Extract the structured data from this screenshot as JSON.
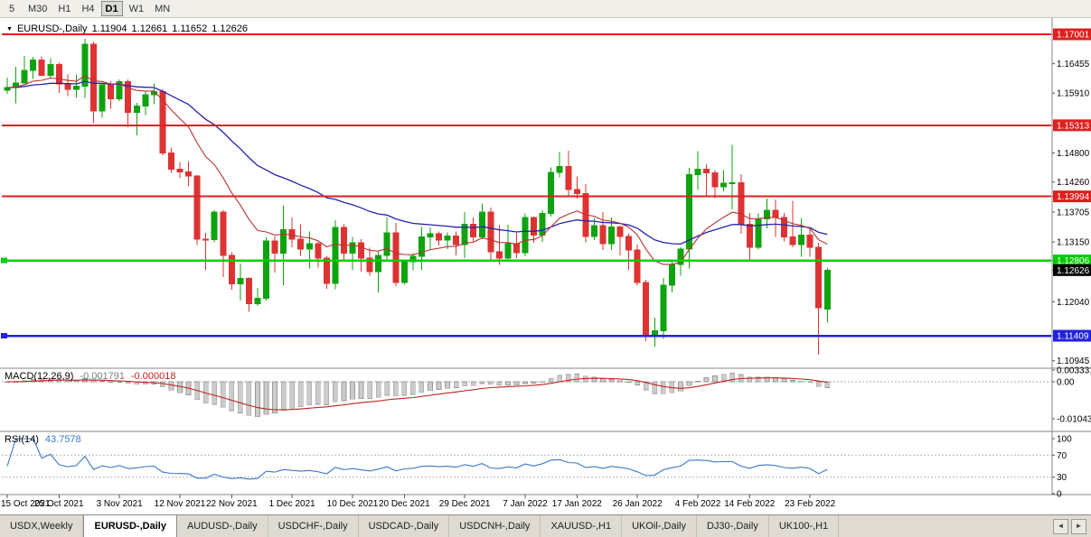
{
  "icons": {
    "dropdown": "▼",
    "scroll_left": "◄",
    "scroll_right": "►"
  },
  "toolbar": {
    "timeframes": [
      {
        "label": "5",
        "active": false
      },
      {
        "label": "M30",
        "active": false
      },
      {
        "label": "H1",
        "active": false
      },
      {
        "label": "H4",
        "active": false
      },
      {
        "label": "D1",
        "active": true
      },
      {
        "label": "W1",
        "active": false
      },
      {
        "label": "MN",
        "active": false
      }
    ]
  },
  "chart_data": {
    "type": "candlestick",
    "title": {
      "symbol": "EURUSD-,Daily",
      "open": "1.11904",
      "high": "1.12661",
      "low": "1.11652",
      "close": "1.12626"
    },
    "colors": {
      "up": "#0FA30F",
      "down": "#DD3333"
    },
    "ma_fast": {
      "period": 13,
      "color": "#B83232"
    },
    "ma_slow": {
      "period": 34,
      "color": "#2424AC"
    },
    "hlines": [
      {
        "price": 1.17001,
        "color": "#DE2020",
        "width": 2,
        "marker": false
      },
      {
        "price": 1.15313,
        "color": "#DE2020",
        "width": 2,
        "marker": false
      },
      {
        "price": 1.13994,
        "color": "#DE2020",
        "width": 2,
        "marker": false
      },
      {
        "price": 1.12806,
        "color": "#00CC00",
        "width": 2.5,
        "marker": true
      },
      {
        "price": 1.11409,
        "color": "#2222DD",
        "width": 2.5,
        "marker": true
      }
    ],
    "y_axis_labels": [
      {
        "text": "1.17001",
        "price": 1.17001,
        "badge": "#DE2020"
      },
      {
        "text": "1.16455",
        "price": 1.16455,
        "badge": null
      },
      {
        "text": "1.15910",
        "price": 1.1591,
        "badge": null
      },
      {
        "text": "1.15313",
        "price": 1.15313,
        "badge": "#DE2020"
      },
      {
        "text": "1.14800",
        "price": 1.148,
        "badge": null
      },
      {
        "text": "1.14260",
        "price": 1.1426,
        "badge": null
      },
      {
        "text": "1.13994",
        "price": 1.13994,
        "badge": "#DE2020"
      },
      {
        "text": "1.13705",
        "price": 1.13705,
        "badge": null
      },
      {
        "text": "1.13150",
        "price": 1.1315,
        "badge": null
      },
      {
        "text": "1.12806",
        "price": 1.12806,
        "badge": "#00CC00"
      },
      {
        "text": "1.12626",
        "price": 1.12626,
        "badge": "#000000"
      },
      {
        "text": "1.12040",
        "price": 1.1204,
        "badge": null
      },
      {
        "text": "1.11409",
        "price": 1.11409,
        "badge": "#2222DD"
      },
      {
        "text": "1.10945",
        "price": 1.10945,
        "badge": null
      }
    ],
    "x_labels": [
      {
        "index": 0,
        "text": "15 Oct 2021"
      },
      {
        "index": 6,
        "text": "25 Oct 2021"
      },
      {
        "index": 13,
        "text": "3 Nov 2021"
      },
      {
        "index": 20,
        "text": "12 Nov 2021"
      },
      {
        "index": 26,
        "text": "22 Nov 2021"
      },
      {
        "index": 33,
        "text": "1 Dec 2021"
      },
      {
        "index": 40,
        "text": "10 Dec 2021"
      },
      {
        "index": 46,
        "text": "20 Dec 2021"
      },
      {
        "index": 53,
        "text": "29 Dec 2021"
      },
      {
        "index": 60,
        "text": "7 Jan 2022"
      },
      {
        "index": 66,
        "text": "17 Jan 2022"
      },
      {
        "index": 73,
        "text": "26 Jan 2022"
      },
      {
        "index": 80,
        "text": "4 Feb 2022"
      },
      {
        "index": 86,
        "text": "14 Feb 2022"
      },
      {
        "index": 93,
        "text": "23 Feb 2022"
      }
    ],
    "candles": [
      [
        1.1596,
        1.162,
        1.159,
        1.1601
      ],
      [
        1.1601,
        1.164,
        1.1572,
        1.161
      ],
      [
        1.161,
        1.166,
        1.1609,
        1.1633
      ],
      [
        1.1633,
        1.1658,
        1.1617,
        1.1652
      ],
      [
        1.1652,
        1.1659,
        1.1622,
        1.1624
      ],
      [
        1.1624,
        1.1656,
        1.162,
        1.1644
      ],
      [
        1.1644,
        1.1647,
        1.1591,
        1.1608
      ],
      [
        1.1608,
        1.1626,
        1.1585,
        1.1598
      ],
      [
        1.1598,
        1.1626,
        1.1583,
        1.1604
      ],
      [
        1.1604,
        1.1692,
        1.1582,
        1.1682
      ],
      [
        1.1682,
        1.1686,
        1.1535,
        1.1558
      ],
      [
        1.1558,
        1.1609,
        1.1545,
        1.1606
      ],
      [
        1.1606,
        1.1613,
        1.1562,
        1.158
      ],
      [
        1.158,
        1.1616,
        1.1576,
        1.1612
      ],
      [
        1.1612,
        1.1616,
        1.1528,
        1.1555
      ],
      [
        1.1555,
        1.1573,
        1.1513,
        1.1567
      ],
      [
        1.1567,
        1.1595,
        1.155,
        1.1588
      ],
      [
        1.1588,
        1.1609,
        1.157,
        1.1594
      ],
      [
        1.1594,
        1.1598,
        1.1475,
        1.148
      ],
      [
        1.148,
        1.149,
        1.1443,
        1.145
      ],
      [
        1.145,
        1.1463,
        1.1433,
        1.1445
      ],
      [
        1.1445,
        1.1465,
        1.1418,
        1.1437
      ],
      [
        1.1437,
        1.1439,
        1.1309,
        1.132
      ],
      [
        1.132,
        1.1332,
        1.1263,
        1.1319
      ],
      [
        1.1319,
        1.1374,
        1.1314,
        1.137
      ],
      [
        1.137,
        1.1374,
        1.125,
        1.129
      ],
      [
        1.129,
        1.1296,
        1.1226,
        1.1237
      ],
      [
        1.1237,
        1.1275,
        1.1206,
        1.1247
      ],
      [
        1.1247,
        1.125,
        1.1185,
        1.12
      ],
      [
        1.12,
        1.123,
        1.1196,
        1.121
      ],
      [
        1.121,
        1.1323,
        1.1206,
        1.1317
      ],
      [
        1.1317,
        1.1325,
        1.1258,
        1.1294
      ],
      [
        1.1294,
        1.1383,
        1.1235,
        1.1338
      ],
      [
        1.1338,
        1.136,
        1.1305,
        1.132
      ],
      [
        1.132,
        1.1348,
        1.1289,
        1.1302
      ],
      [
        1.1302,
        1.1334,
        1.1266,
        1.1312
      ],
      [
        1.1312,
        1.1315,
        1.1267,
        1.1285
      ],
      [
        1.1285,
        1.1289,
        1.1228,
        1.1238
      ],
      [
        1.1238,
        1.1355,
        1.1227,
        1.1342
      ],
      [
        1.1342,
        1.1348,
        1.1279,
        1.1294
      ],
      [
        1.1294,
        1.1324,
        1.1263,
        1.1313
      ],
      [
        1.1313,
        1.132,
        1.126,
        1.1285
      ],
      [
        1.1285,
        1.1304,
        1.1252,
        1.126
      ],
      [
        1.126,
        1.1298,
        1.1221,
        1.129
      ],
      [
        1.129,
        1.136,
        1.128,
        1.1332
      ],
      [
        1.1332,
        1.135,
        1.1233,
        1.124
      ],
      [
        1.124,
        1.128,
        1.1236,
        1.1278
      ],
      [
        1.1278,
        1.1294,
        1.1262,
        1.1288
      ],
      [
        1.1288,
        1.1343,
        1.1263,
        1.1324
      ],
      [
        1.1324,
        1.1342,
        1.1301,
        1.133
      ],
      [
        1.133,
        1.1334,
        1.1308,
        1.1318
      ],
      [
        1.1318,
        1.1333,
        1.1302,
        1.1326
      ],
      [
        1.1326,
        1.1334,
        1.129,
        1.131
      ],
      [
        1.131,
        1.137,
        1.1285,
        1.1348
      ],
      [
        1.1348,
        1.136,
        1.1316,
        1.1324
      ],
      [
        1.1324,
        1.1386,
        1.132,
        1.137
      ],
      [
        1.137,
        1.1379,
        1.1279,
        1.1297
      ],
      [
        1.1297,
        1.1346,
        1.1272,
        1.1285
      ],
      [
        1.1285,
        1.1347,
        1.128,
        1.1312
      ],
      [
        1.1312,
        1.1332,
        1.1285,
        1.1295
      ],
      [
        1.1295,
        1.1368,
        1.1288,
        1.136
      ],
      [
        1.136,
        1.1362,
        1.1313,
        1.1328
      ],
      [
        1.1328,
        1.1374,
        1.1315,
        1.1368
      ],
      [
        1.1368,
        1.1453,
        1.1362,
        1.1444
      ],
      [
        1.1444,
        1.1482,
        1.1435,
        1.1455
      ],
      [
        1.1455,
        1.1484,
        1.1398,
        1.1412
      ],
      [
        1.1412,
        1.1436,
        1.1395,
        1.1405
      ],
      [
        1.1405,
        1.1422,
        1.1314,
        1.1325
      ],
      [
        1.1325,
        1.1359,
        1.1318,
        1.1345
      ],
      [
        1.1345,
        1.137,
        1.13,
        1.1312
      ],
      [
        1.1312,
        1.136,
        1.13,
        1.1343
      ],
      [
        1.1343,
        1.1345,
        1.129,
        1.1325
      ],
      [
        1.1325,
        1.133,
        1.1263,
        1.13
      ],
      [
        1.13,
        1.131,
        1.1234,
        1.124
      ],
      [
        1.124,
        1.1245,
        1.1131,
        1.1143
      ],
      [
        1.1143,
        1.1174,
        1.1121,
        1.115
      ],
      [
        1.115,
        1.1248,
        1.1135,
        1.1235
      ],
      [
        1.1235,
        1.1279,
        1.1221,
        1.1273
      ],
      [
        1.1273,
        1.1305,
        1.1252,
        1.1302
      ],
      [
        1.1302,
        1.1452,
        1.1266,
        1.144
      ],
      [
        1.144,
        1.1483,
        1.1411,
        1.145
      ],
      [
        1.145,
        1.1459,
        1.14,
        1.1443
      ],
      [
        1.1443,
        1.1448,
        1.1396,
        1.1417
      ],
      [
        1.1417,
        1.1448,
        1.1409,
        1.1424
      ],
      [
        1.1424,
        1.1495,
        1.1375,
        1.1425
      ],
      [
        1.1425,
        1.1441,
        1.133,
        1.1348
      ],
      [
        1.1348,
        1.1369,
        1.1279,
        1.1305
      ],
      [
        1.1305,
        1.1368,
        1.1301,
        1.1358
      ],
      [
        1.1358,
        1.1395,
        1.134,
        1.1374
      ],
      [
        1.1374,
        1.1394,
        1.1324,
        1.136
      ],
      [
        1.136,
        1.1369,
        1.1316,
        1.1324
      ],
      [
        1.1324,
        1.1391,
        1.1305,
        1.131
      ],
      [
        1.131,
        1.1359,
        1.1287,
        1.1328
      ],
      [
        1.1328,
        1.1342,
        1.1287,
        1.1305
      ],
      [
        1.1305,
        1.1313,
        1.1106,
        1.1193
      ],
      [
        1.11904,
        1.12661,
        1.11652,
        1.12626
      ]
    ],
    "macd": {
      "label": "MACD(12,26,9)",
      "fast": 12,
      "slow": 26,
      "signal": 9,
      "main_value": "-0.001791",
      "signal_value": "-0.000018",
      "histogram_fill": "#CCCCCC",
      "histogram_stroke": "#999999",
      "signal_color": "#C22222",
      "axis_labels": [
        {
          "text": "0.003331",
          "value": 0.003331
        },
        {
          "text": "0.00",
          "value": 0
        },
        {
          "text": "-0.010439",
          "value": -0.010439
        }
      ]
    },
    "rsi": {
      "label": "RSI(14)",
      "period": 14,
      "value": "43.7578",
      "color": "#3C78C8",
      "levels": [
        70,
        30
      ],
      "axis_labels": [
        {
          "text": "100",
          "value": 100
        },
        {
          "text": "70",
          "value": 70
        },
        {
          "text": "30",
          "value": 30
        },
        {
          "text": "0",
          "value": 0
        }
      ]
    }
  },
  "tabs": {
    "items": [
      {
        "label": "USDX,Weekly",
        "active": false
      },
      {
        "label": "EURUSD-,Daily",
        "active": true
      },
      {
        "label": "AUDUSD-,Daily",
        "active": false
      },
      {
        "label": "USDCHF-,Daily",
        "active": false
      },
      {
        "label": "USDCAD-,Daily",
        "active": false
      },
      {
        "label": "USDCNH-,Daily",
        "active": false
      },
      {
        "label": "XAUUSD-,H1",
        "active": false
      },
      {
        "label": "UKOil-,Daily",
        "active": false
      },
      {
        "label": "DJ30-,Daily",
        "active": false
      },
      {
        "label": "UK100-,H1",
        "active": false
      }
    ]
  }
}
